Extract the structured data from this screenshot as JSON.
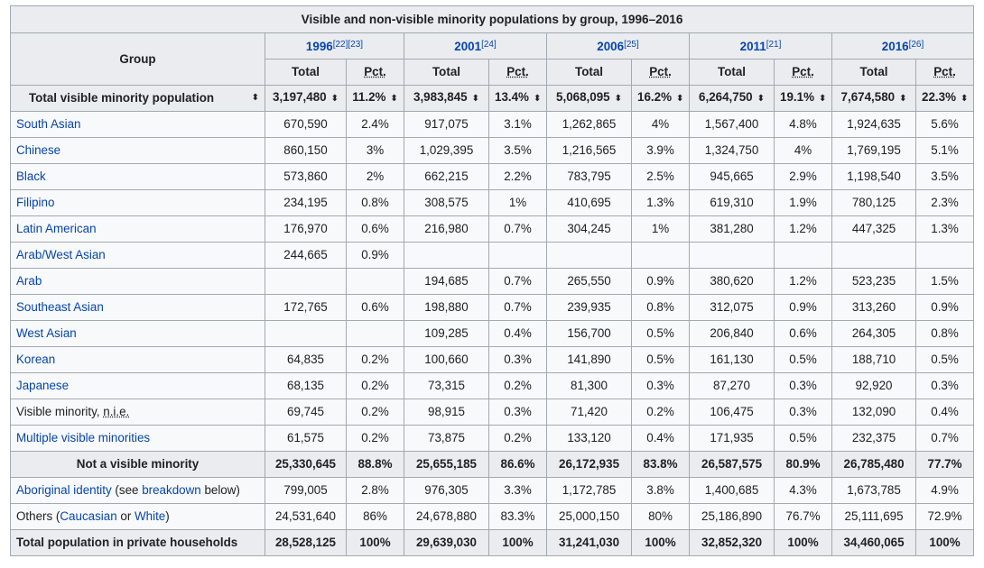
{
  "table": {
    "caption": "Visible and non-visible minority populations by group, 1996–2016",
    "group_header": "Group",
    "years": [
      {
        "label": "1996",
        "ref": "[22][23]"
      },
      {
        "label": "2001",
        "ref": "[24]"
      },
      {
        "label": "2006",
        "ref": "[25]"
      },
      {
        "label": "2011",
        "ref": "[21]"
      },
      {
        "label": "2016",
        "ref": "[26]"
      }
    ],
    "total_label": "Total",
    "pct_label": "Pct.",
    "sort_icon": "⬍",
    "summary_row": {
      "label": "Total visible minority population",
      "values": [
        "3,197,480",
        "11.2%",
        "3,983,845",
        "13.4%",
        "5,068,095",
        "16.2%",
        "6,264,750",
        "19.1%",
        "7,674,580",
        "22.3%"
      ]
    },
    "rows": [
      {
        "label": "South Asian",
        "link": true,
        "values": [
          "670,590",
          "2.4%",
          "917,075",
          "3.1%",
          "1,262,865",
          "4%",
          "1,567,400",
          "4.8%",
          "1,924,635",
          "5.6%"
        ]
      },
      {
        "label": "Chinese",
        "link": true,
        "values": [
          "860,150",
          "3%",
          "1,029,395",
          "3.5%",
          "1,216,565",
          "3.9%",
          "1,324,750",
          "4%",
          "1,769,195",
          "5.1%"
        ]
      },
      {
        "label": "Black",
        "link": true,
        "values": [
          "573,860",
          "2%",
          "662,215",
          "2.2%",
          "783,795",
          "2.5%",
          "945,665",
          "2.9%",
          "1,198,540",
          "3.5%"
        ]
      },
      {
        "label": "Filipino",
        "link": true,
        "values": [
          "234,195",
          "0.8%",
          "308,575",
          "1%",
          "410,695",
          "1.3%",
          "619,310",
          "1.9%",
          "780,125",
          "2.3%"
        ]
      },
      {
        "label": "Latin American",
        "link": true,
        "values": [
          "176,970",
          "0.6%",
          "216,980",
          "0.7%",
          "304,245",
          "1%",
          "381,280",
          "1.2%",
          "447,325",
          "1.3%"
        ]
      },
      {
        "label": "Arab/West Asian",
        "link": true,
        "values": [
          "244,665",
          "0.9%",
          "",
          "",
          "",
          "",
          "",
          "",
          "",
          ""
        ]
      },
      {
        "label": "Arab",
        "link": true,
        "values": [
          "",
          "",
          "194,685",
          "0.7%",
          "265,550",
          "0.9%",
          "380,620",
          "1.2%",
          "523,235",
          "1.5%"
        ]
      },
      {
        "label": "Southeast Asian",
        "link": true,
        "values": [
          "172,765",
          "0.6%",
          "198,880",
          "0.7%",
          "239,935",
          "0.8%",
          "312,075",
          "0.9%",
          "313,260",
          "0.9%"
        ]
      },
      {
        "label": "West Asian",
        "link": true,
        "values": [
          "",
          "",
          "109,285",
          "0.4%",
          "156,700",
          "0.5%",
          "206,840",
          "0.6%",
          "264,305",
          "0.8%"
        ]
      },
      {
        "label": "Korean",
        "link": true,
        "values": [
          "64,835",
          "0.2%",
          "100,660",
          "0.3%",
          "141,890",
          "0.5%",
          "161,130",
          "0.5%",
          "188,710",
          "0.5%"
        ]
      },
      {
        "label": "Japanese",
        "link": true,
        "values": [
          "68,135",
          "0.2%",
          "73,315",
          "0.2%",
          "81,300",
          "0.3%",
          "87,270",
          "0.3%",
          "92,920",
          "0.3%"
        ]
      },
      {
        "label_prefix": "Visible minority, ",
        "label_abbr": "n.i.e.",
        "link": false,
        "values": [
          "69,745",
          "0.2%",
          "98,915",
          "0.3%",
          "71,420",
          "0.2%",
          "106,475",
          "0.3%",
          "132,090",
          "0.4%"
        ]
      },
      {
        "label": "Multiple visible minorities",
        "link": true,
        "values": [
          "61,575",
          "0.2%",
          "73,875",
          "0.2%",
          "133,120",
          "0.4%",
          "171,935",
          "0.5%",
          "232,375",
          "0.7%"
        ]
      }
    ],
    "not_visible_row": {
      "label": "Not a visible minority",
      "values": [
        "25,330,645",
        "88.8%",
        "25,655,185",
        "86.6%",
        "26,172,935",
        "83.8%",
        "26,587,575",
        "80.9%",
        "26,785,480",
        "77.7%"
      ]
    },
    "aboriginal_row": {
      "link_text": "Aboriginal identity",
      "mid_text": " (see ",
      "link2_text": "breakdown",
      "end_text": " below)",
      "values": [
        "799,005",
        "2.8%",
        "976,305",
        "3.3%",
        "1,172,785",
        "3.8%",
        "1,400,685",
        "4.3%",
        "1,673,785",
        "4.9%"
      ]
    },
    "others_row": {
      "prefix": "Others (",
      "link1": "Caucasian",
      "mid": " or ",
      "link2": "White",
      "suffix": ")",
      "values": [
        "24,531,640",
        "86%",
        "24,678,880",
        "83.3%",
        "25,000,150",
        "80%",
        "25,186,890",
        "76.7%",
        "25,111,695",
        "72.9%"
      ]
    },
    "grand_total_row": {
      "label": "Total population in private households",
      "values": [
        "28,528,125",
        "100%",
        "29,639,030",
        "100%",
        "31,241,030",
        "100%",
        "32,852,320",
        "100%",
        "34,460,065",
        "100%"
      ]
    }
  }
}
